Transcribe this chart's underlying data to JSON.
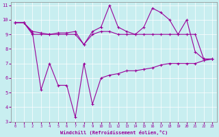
{
  "xlabel": "Windchill (Refroidissement éolien,°C)",
  "background_color": "#c8eef0",
  "line_color": "#990099",
  "xlim": [
    -0.5,
    23.5
  ],
  "ylim": [
    3,
    11.2
  ],
  "xticks": [
    0,
    1,
    2,
    3,
    4,
    5,
    6,
    7,
    8,
    9,
    10,
    11,
    12,
    13,
    14,
    15,
    16,
    17,
    18,
    19,
    20,
    21,
    22,
    23
  ],
  "yticks": [
    3,
    4,
    5,
    6,
    7,
    8,
    9,
    10,
    11
  ],
  "series": [
    {
      "x": [
        0,
        1,
        2,
        3,
        4,
        5,
        6,
        7,
        8,
        9,
        10,
        11,
        12,
        13,
        14,
        15,
        16,
        17,
        18,
        19,
        20,
        21,
        22,
        23
      ],
      "y": [
        9.8,
        9.8,
        9.0,
        9.0,
        9.0,
        9.0,
        9.0,
        9.0,
        8.3,
        9.0,
        9.2,
        9.2,
        9.0,
        9.0,
        9.0,
        9.0,
        9.0,
        9.0,
        9.0,
        9.0,
        9.0,
        9.0,
        7.3,
        7.3
      ]
    },
    {
      "x": [
        0,
        1,
        2,
        3,
        4,
        5,
        6,
        7,
        8,
        9,
        10,
        11,
        12,
        13,
        14,
        15,
        16,
        17,
        18,
        19,
        20,
        21,
        22,
        23
      ],
      "y": [
        9.8,
        9.8,
        9.2,
        9.1,
        9.0,
        9.1,
        9.1,
        9.2,
        8.3,
        9.2,
        9.5,
        11.0,
        9.5,
        9.2,
        9.0,
        9.5,
        10.8,
        10.5,
        10.0,
        9.0,
        10.0,
        7.8,
        7.3,
        7.3
      ]
    },
    {
      "x": [
        0,
        1,
        2,
        3,
        4,
        5,
        6,
        7,
        8,
        9,
        10,
        11,
        12,
        13,
        14,
        15,
        16,
        17,
        18,
        19,
        20,
        21,
        22,
        23
      ],
      "y": [
        9.8,
        9.8,
        9.1,
        5.2,
        7.0,
        5.5,
        5.5,
        3.3,
        7.0,
        4.2,
        6.0,
        6.2,
        6.3,
        6.5,
        6.5,
        6.6,
        6.7,
        6.9,
        7.0,
        7.0,
        7.0,
        7.0,
        7.2,
        7.3
      ]
    }
  ]
}
